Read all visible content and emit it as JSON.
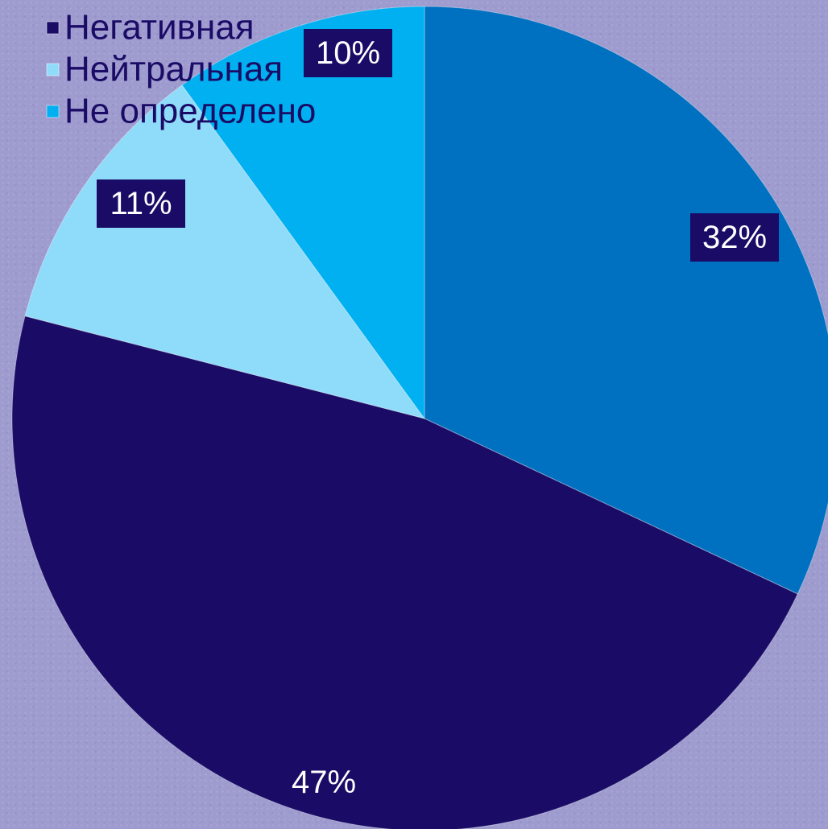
{
  "chart_data": {
    "type": "pie",
    "title": "",
    "start_angle_deg": 0,
    "direction": "clockwise",
    "slices": [
      {
        "label": "",
        "value": 32,
        "value_label": "32%",
        "color": "#0070c0",
        "label_boxed": true
      },
      {
        "label": "Негативная",
        "value": 47,
        "value_label": "47%",
        "color": "#1a0c66",
        "label_boxed": false
      },
      {
        "label": "Нейтральная",
        "value": 11,
        "value_label": "11%",
        "color": "#8fdcfa",
        "label_boxed": true
      },
      {
        "label": "Не определено",
        "value": 10,
        "value_label": "10%",
        "color": "#00b0f0",
        "label_boxed": true
      }
    ],
    "legend": {
      "placement": "top-left",
      "entries": [
        {
          "label": "Негативная",
          "color": "#1a0c66"
        },
        {
          "label": "Нейтральная",
          "color": "#8fdcfa"
        },
        {
          "label": "Не определено",
          "color": "#00b0f0"
        }
      ]
    },
    "label_box_color": "#1a0c66",
    "label_text_color": "#ffffff",
    "legend_text_color": "#1a0c66"
  }
}
